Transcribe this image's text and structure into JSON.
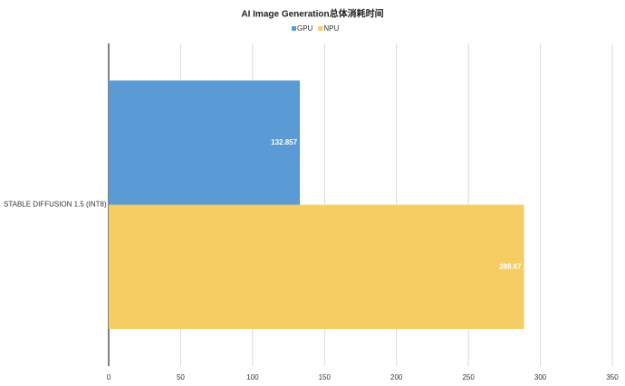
{
  "chart_data": {
    "type": "bar",
    "orientation": "horizontal",
    "title": "AI Image Generation总体消耗时间",
    "categories": [
      "STABLE DIFFUSION 1.5 (INT8)"
    ],
    "series": [
      {
        "name": "GPU",
        "color": "#5b9bd5",
        "values": [
          132.857
        ]
      },
      {
        "name": "NPU",
        "color": "#f6cd63",
        "values": [
          288.67
        ]
      }
    ],
    "xlim": [
      0,
      350
    ],
    "xticks": [
      0,
      50,
      100,
      150,
      200,
      250,
      300,
      350
    ],
    "grid": true,
    "legend": "top"
  }
}
